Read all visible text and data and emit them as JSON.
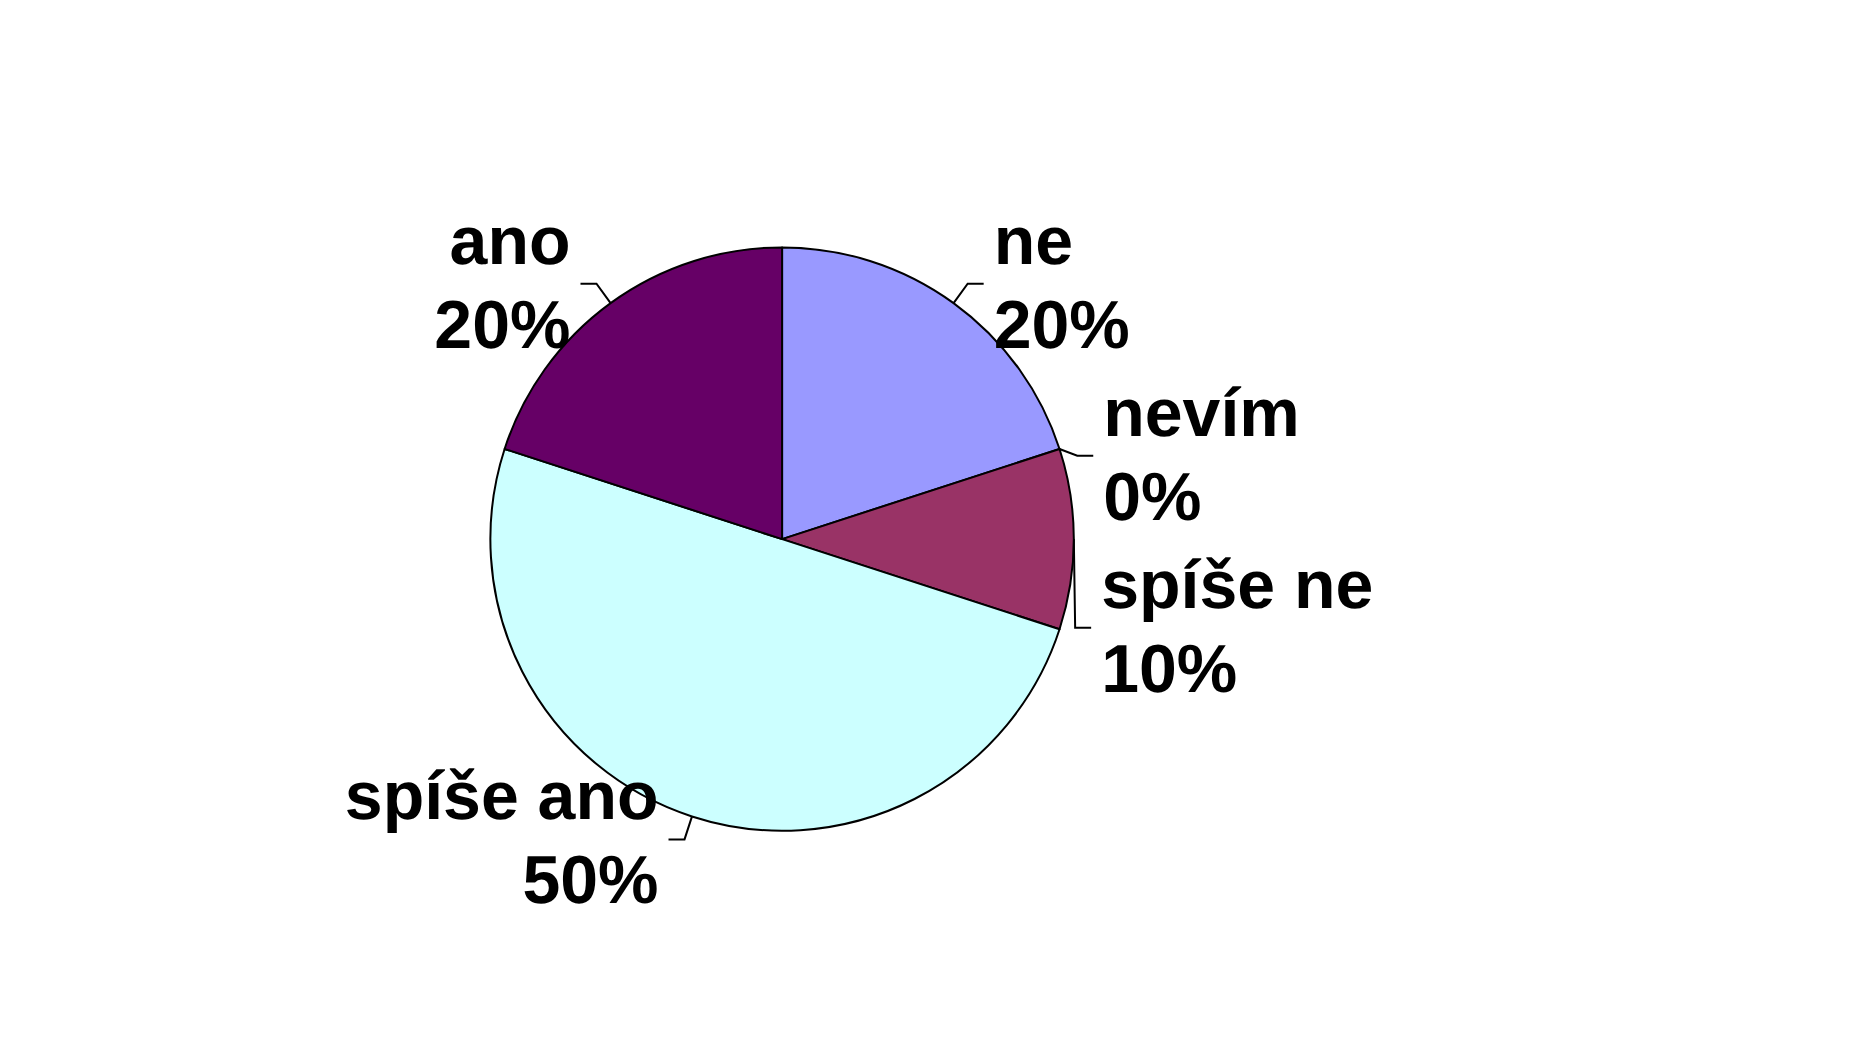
{
  "chart_data": {
    "type": "pie",
    "categories": [
      "ne",
      "nevím",
      "spíše ne",
      "spíše ano",
      "ano"
    ],
    "values": [
      20,
      0,
      10,
      50,
      20
    ],
    "colors": [
      "#9999ff",
      "#ffffcc",
      "#993366",
      "#ccffff",
      "#660066"
    ],
    "value_labels": [
      "20%",
      "0%",
      "10%",
      "50%",
      "20%"
    ]
  }
}
